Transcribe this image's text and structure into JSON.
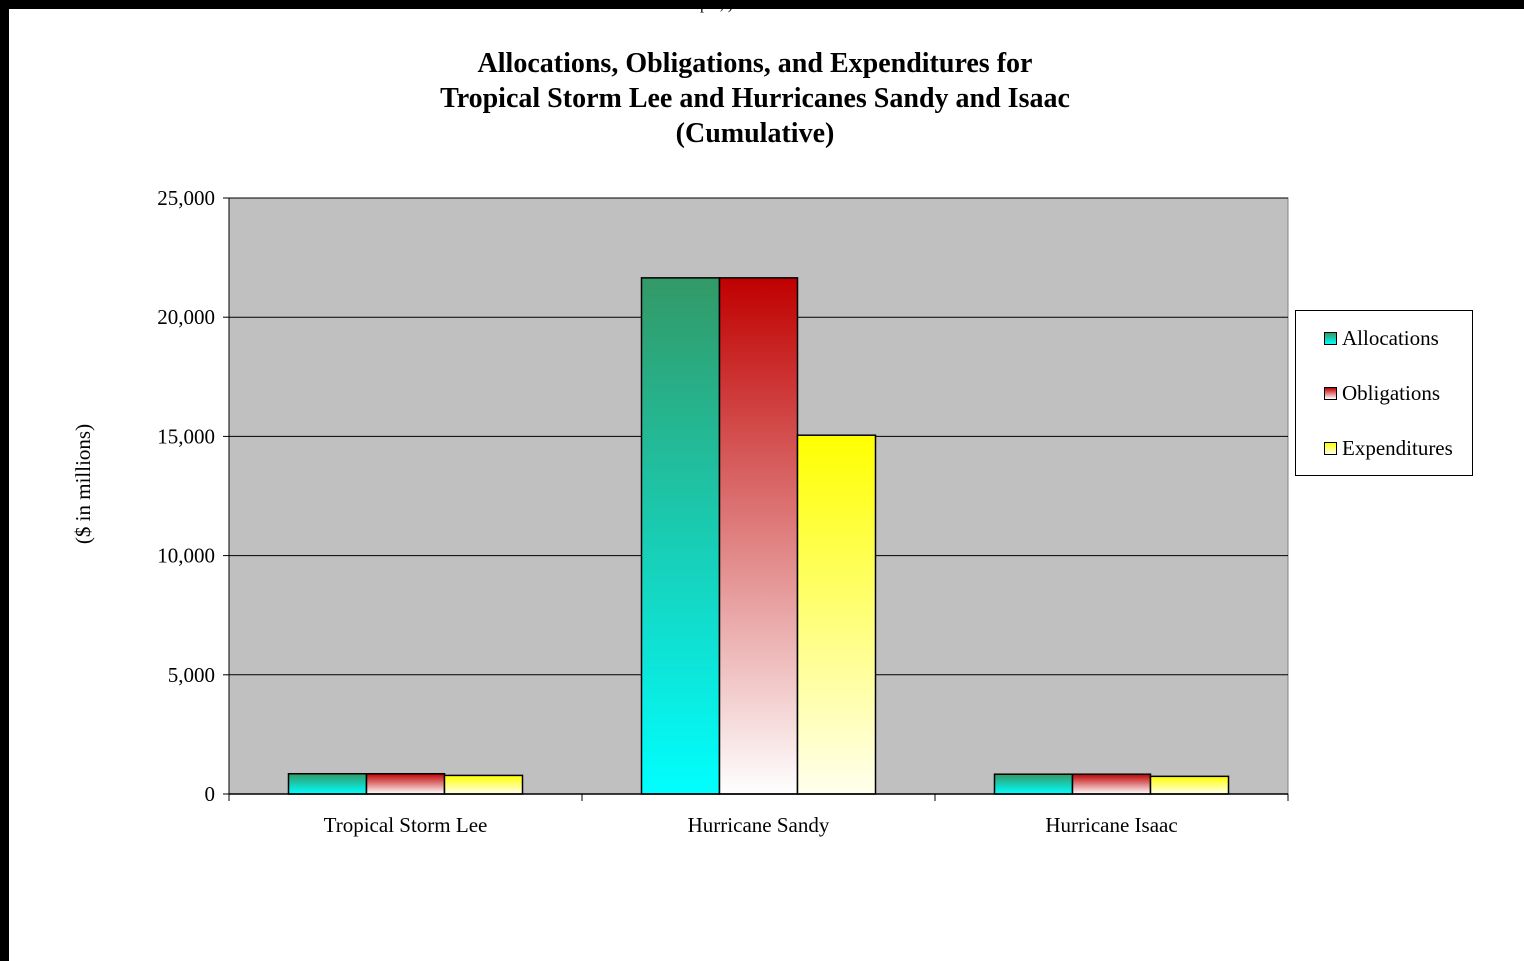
{
  "page": {
    "top_fragment": "per, )"
  },
  "chart_data": {
    "type": "bar",
    "title_lines": [
      "Allocations, Obligations, and Expenditures for",
      "Tropical Storm Lee and Hurricanes Sandy and Isaac",
      "(Cumulative)"
    ],
    "xlabel": "",
    "ylabel": "($ in millions)",
    "ylim": [
      0,
      25000
    ],
    "yticks": [
      0,
      5000,
      10000,
      15000,
      20000,
      25000
    ],
    "ytick_labels": [
      "0",
      "5,000",
      "10,000",
      "15,000",
      "20,000",
      "25,000"
    ],
    "categories": [
      "Tropical Storm Lee",
      "Hurricane Sandy",
      "Hurricane Isaac"
    ],
    "series": [
      {
        "name": "Allocations",
        "values": [
          850,
          21650,
          830
        ],
        "color_top": "#339966",
        "color_bottom": "#00ffff"
      },
      {
        "name": "Obligations",
        "values": [
          850,
          21650,
          830
        ],
        "color_top": "#c00000",
        "color_bottom": "#ffffff"
      },
      {
        "name": "Expenditures",
        "values": [
          780,
          15050,
          740
        ],
        "color_top": "#ffff00",
        "color_bottom": "#ffffee"
      }
    ],
    "grid": true,
    "plot_background": "#c0c0c0",
    "legend_position": "right"
  }
}
